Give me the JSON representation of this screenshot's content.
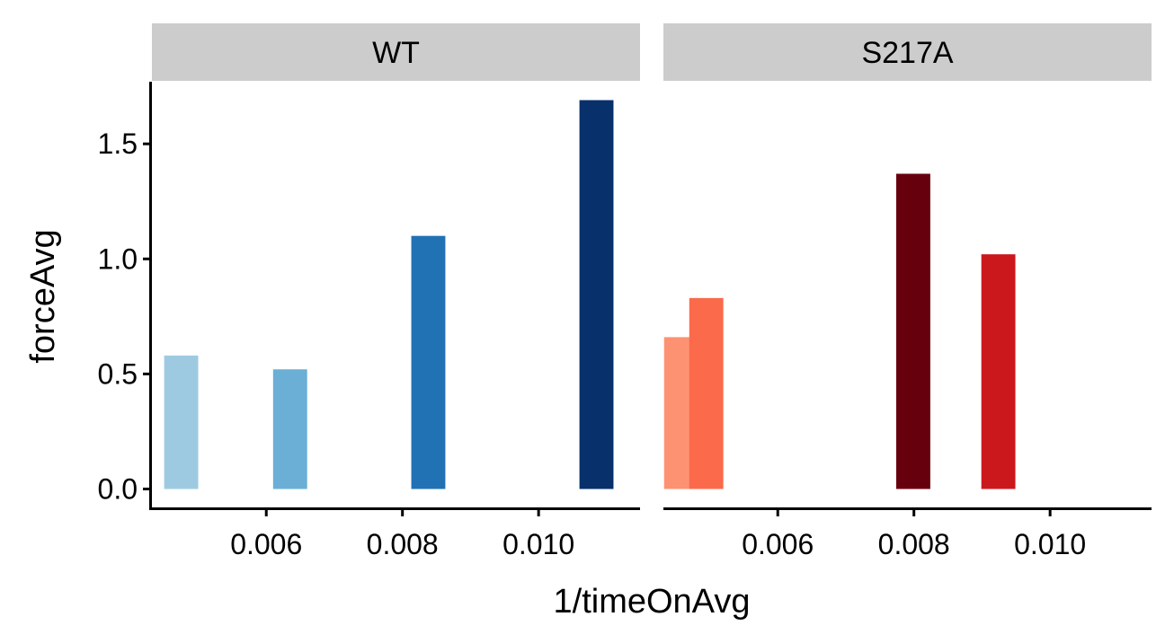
{
  "chart_data": {
    "type": "bar",
    "xlabel": "1/timeOnAvg",
    "ylabel": "forceAvg",
    "xlim": [
      0.00432,
      0.01149
    ],
    "ylim": [
      -0.08,
      1.77
    ],
    "x_ticks": [
      0.006,
      0.008,
      0.01
    ],
    "x_tick_labels": [
      "0.006",
      "0.008",
      "0.010"
    ],
    "y_ticks": [
      0.0,
      0.5,
      1.0,
      1.5
    ],
    "y_tick_labels": [
      "0.0",
      "0.5",
      "1.0",
      "1.5"
    ],
    "bar_width": 0.0005,
    "grid": false,
    "legend": "none",
    "panels": [
      {
        "name": "WT",
        "bars": [
          {
            "x": 0.00475,
            "value": 0.58,
            "color": "#9ecae1"
          },
          {
            "x": 0.00635,
            "value": 0.52,
            "color": "#6baed6"
          },
          {
            "x": 0.00838,
            "value": 1.1,
            "color": "#2171b5"
          },
          {
            "x": 0.01085,
            "value": 1.69,
            "color": "#08306b"
          }
        ]
      },
      {
        "name": "S217A",
        "bars": [
          {
            "x": 0.00458,
            "value": 0.66,
            "color": "#fc9272"
          },
          {
            "x": 0.00495,
            "value": 0.83,
            "color": "#fb6a4a"
          },
          {
            "x": 0.00799,
            "value": 1.37,
            "color": "#67000d"
          },
          {
            "x": 0.00924,
            "value": 1.02,
            "color": "#cb181d"
          }
        ]
      }
    ]
  }
}
